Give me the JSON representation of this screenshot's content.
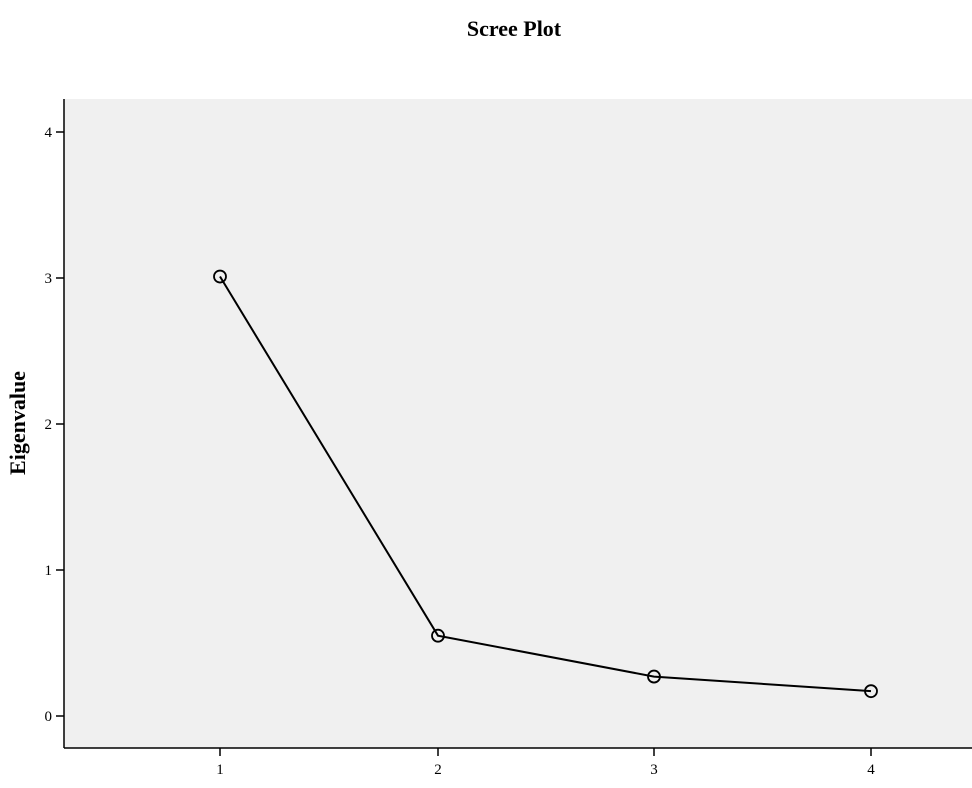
{
  "chart_data": {
    "type": "line",
    "title": "Scree Plot",
    "xlabel": "",
    "ylabel": "Eigenvalue",
    "x": [
      1,
      2,
      3,
      4
    ],
    "xticks": [
      "1",
      "2",
      "3",
      "4"
    ],
    "yticks": [
      "0",
      "1",
      "2",
      "3",
      "4"
    ],
    "ylim": [
      0,
      4
    ],
    "series": [
      {
        "values": [
          3.01,
          0.55,
          0.27,
          0.17
        ]
      }
    ],
    "marker": "open-circle",
    "grid": false,
    "colors": {
      "plot_background": "#f0f0f0",
      "line": "#000000"
    }
  }
}
